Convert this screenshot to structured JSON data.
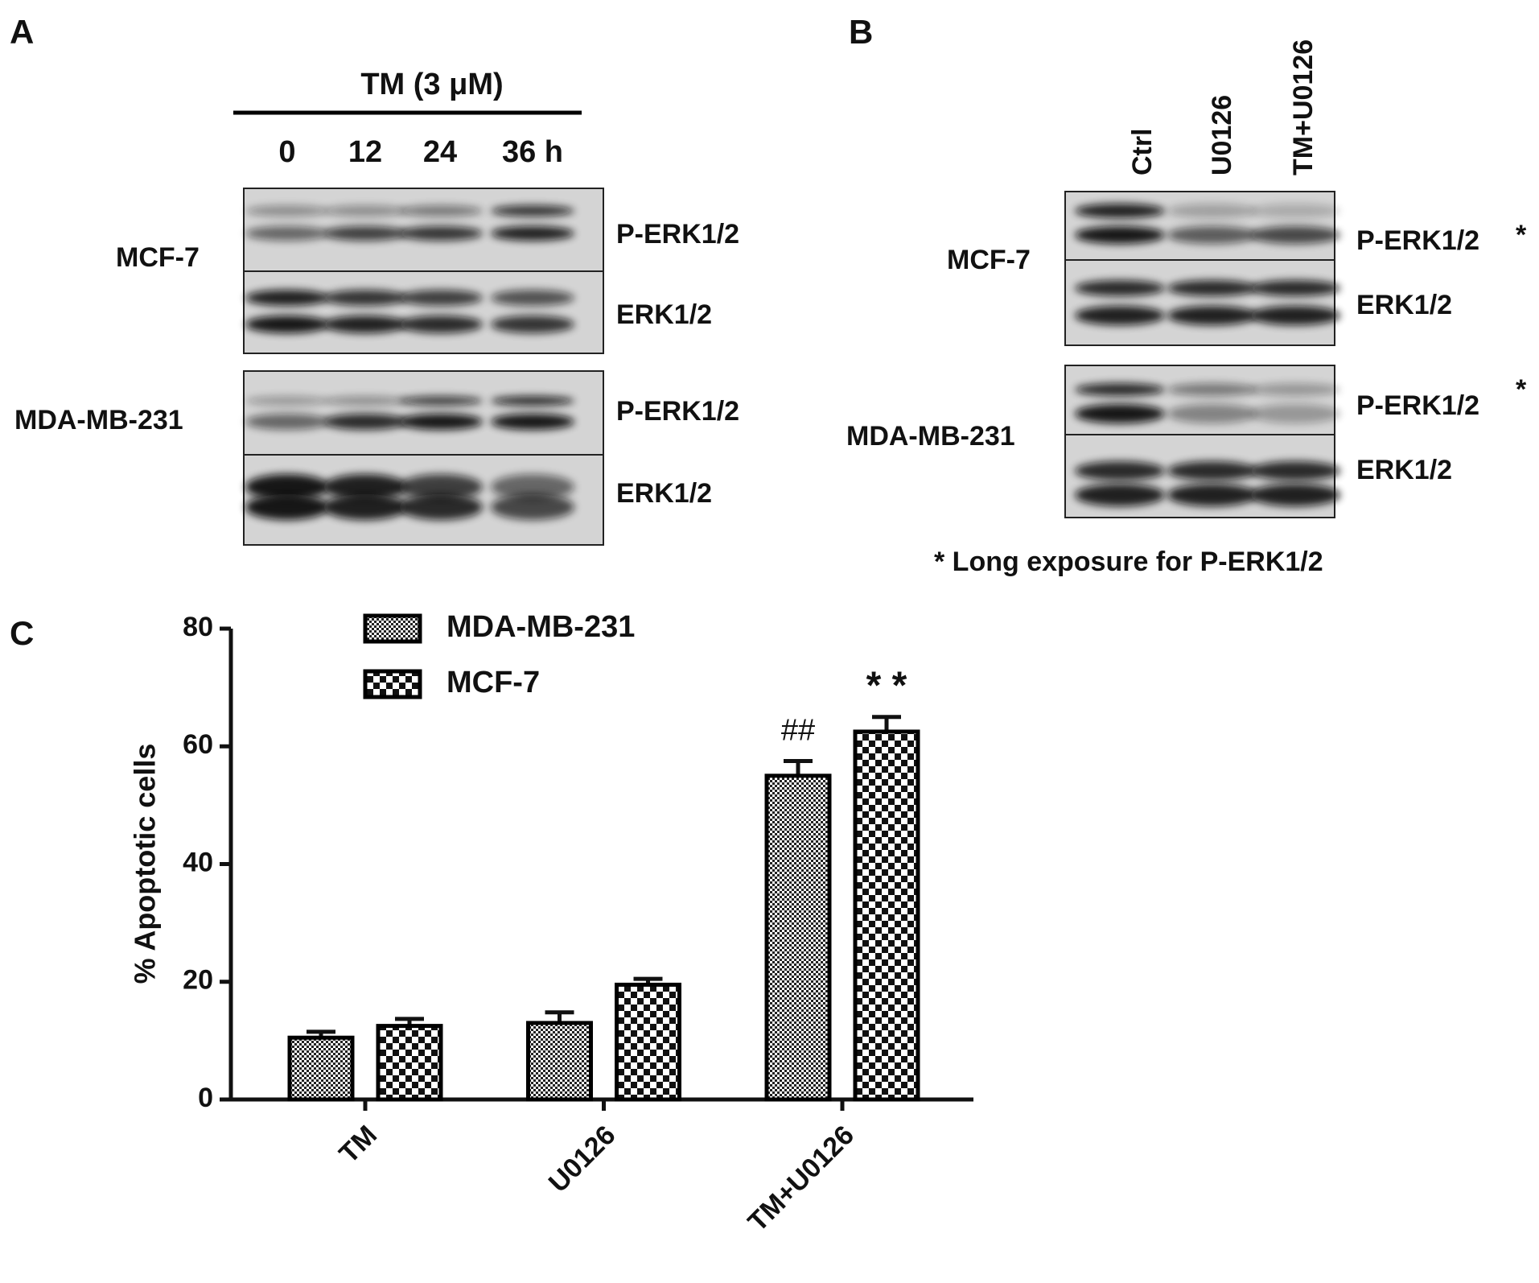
{
  "panel_a": {
    "label": "A",
    "treatment": "TM (3 μM)",
    "lanes": [
      "0",
      "12",
      "24",
      "36 h"
    ],
    "cell_lines": [
      "MCF-7",
      "MDA-MB-231"
    ],
    "blots": [
      "P-ERK1/2",
      "ERK1/2",
      "P-ERK1/2",
      "ERK1/2"
    ]
  },
  "panel_b": {
    "label": "B",
    "lanes": [
      "Ctrl",
      "U0126",
      "TM+U0126"
    ],
    "cell_lines": [
      "MCF-7",
      "MDA-MB-231"
    ],
    "blots": [
      "P-ERK1/2",
      "ERK1/2",
      "P-ERK1/2",
      "ERK1/2"
    ],
    "markers": [
      "*",
      "*"
    ],
    "footnote": "* Long exposure for P-ERK1/2"
  },
  "chart_data": {
    "type": "bar",
    "panel_label": "C",
    "ylabel": "% Apoptotic cells",
    "categories": [
      "TM",
      "U0126",
      "TM+U0126"
    ],
    "series": [
      {
        "name": "MDA-MB-231",
        "color": "#000000",
        "values": [
          10.5,
          13,
          55
        ],
        "errors": [
          1,
          1.8,
          2.5
        ]
      },
      {
        "name": "MCF-7",
        "color": "#000000",
        "values": [
          12.5,
          19.5,
          62.5
        ],
        "errors": [
          1.2,
          1,
          2.5
        ]
      }
    ],
    "ylim": [
      0,
      80
    ],
    "yticks": [
      0,
      20,
      40,
      60,
      80
    ],
    "annotations": [
      "##",
      "* *"
    ]
  }
}
